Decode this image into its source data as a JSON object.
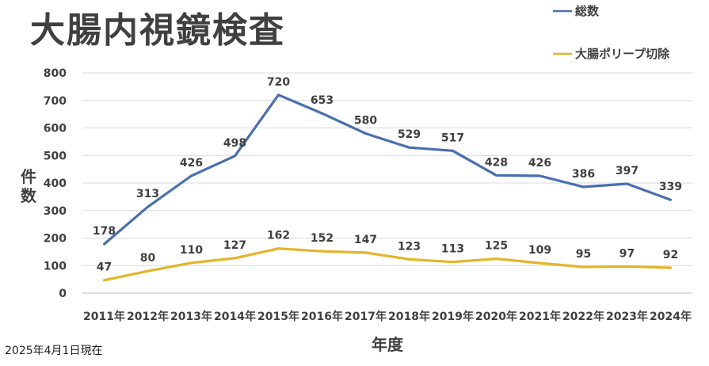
{
  "note": "2025年4月1日現在",
  "chart_data": {
    "type": "line",
    "title": "大腸内視鏡検査",
    "xlabel": "年度",
    "ylabel": "件数",
    "ylim": [
      0,
      800
    ],
    "yticks": [
      "0",
      "100",
      "200",
      "300",
      "400",
      "500",
      "600",
      "700",
      "800"
    ],
    "categories": [
      "2011年",
      "2012年",
      "2013年",
      "2014年",
      "2015年",
      "2016年",
      "2017年",
      "2018年",
      "2019年",
      "2020年",
      "2021年",
      "2022年",
      "2023年",
      "2024年"
    ],
    "grid": true,
    "legend_position": "top-right",
    "series": [
      {
        "name": "総数",
        "color": "#4a6fb0",
        "values": [
          178,
          313,
          426,
          498,
          720,
          653,
          580,
          529,
          517,
          428,
          426,
          386,
          397,
          339
        ]
      },
      {
        "name": "大腸ポリープ切除",
        "color": "#e3b52a",
        "values": [
          47,
          80,
          110,
          127,
          162,
          152,
          147,
          123,
          113,
          125,
          109,
          95,
          97,
          92
        ]
      }
    ]
  }
}
